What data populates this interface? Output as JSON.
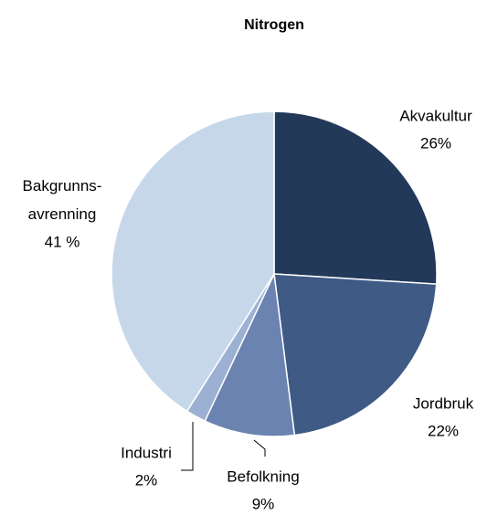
{
  "chart_data": {
    "type": "pie",
    "title": "Nitrogen",
    "categories": [
      "Akvakultur",
      "Jordbruk",
      "Befolkning",
      "Industri",
      "Bakgrunns-avrenning"
    ],
    "values": [
      26,
      22,
      9,
      2,
      41
    ],
    "value_labels": [
      "26%",
      "22%",
      "9%",
      "2%",
      "41 %"
    ],
    "colors": [
      "#23395a",
      "#3f5a85",
      "#6b83b0",
      "#9cb0d3",
      "#c6d7ea"
    ]
  }
}
